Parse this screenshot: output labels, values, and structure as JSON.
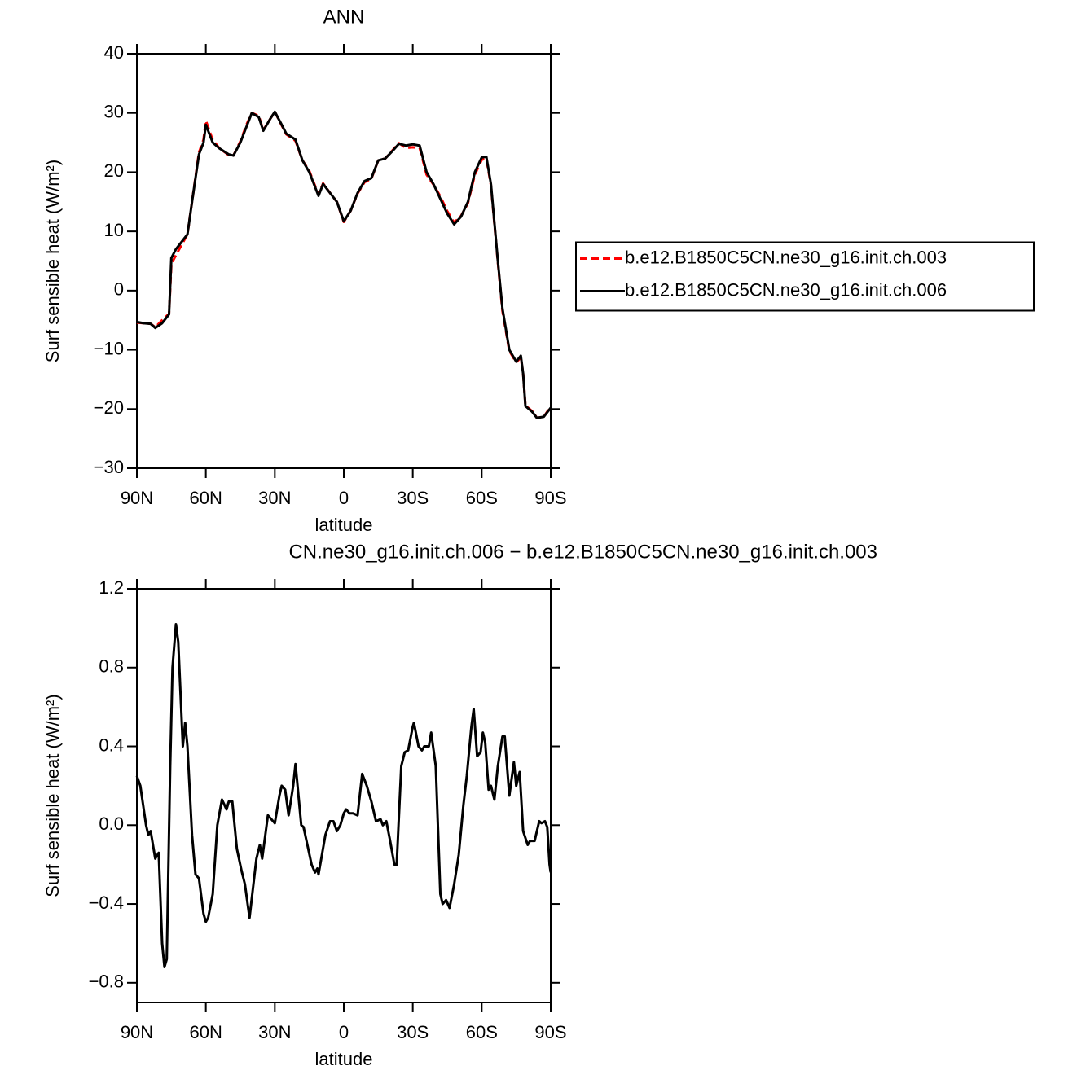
{
  "chart_data": [
    {
      "type": "line",
      "title": "ANN",
      "xlabel": "latitude",
      "ylabel": "Surf sensible heat (W/m²)",
      "x": [
        90,
        87,
        84,
        82,
        79,
        76,
        75,
        73,
        70,
        68,
        66,
        63,
        61,
        60,
        57,
        54,
        50,
        48,
        45,
        42,
        40,
        37,
        35,
        32,
        30,
        27,
        25,
        21,
        18,
        15,
        11,
        9,
        6,
        3,
        0,
        -3,
        -6,
        -9,
        -12,
        -15,
        -18,
        -21,
        -24,
        -27,
        -30,
        -33,
        -36,
        -39,
        -42,
        -45,
        -48,
        -51,
        -54,
        -57,
        -60,
        -62,
        -64,
        -67,
        -69,
        -72,
        -75,
        -77,
        -78,
        -79,
        -82,
        -84,
        -87,
        -90
      ],
      "series": [
        {
          "name": "b.e12.B1850C5CN.ne30_g16.init.ch.003",
          "color": "#ff0000",
          "linestyle": "dashed",
          "values": [
            -5.4,
            -5.5,
            -5.6,
            -6.2,
            -5.0,
            -3.9,
            4.5,
            6,
            8.1,
            9.5,
            15,
            23.3,
            25.5,
            28.7,
            25.4,
            24,
            22.9,
            22.8,
            25.2,
            28.3,
            30,
            29.5,
            27.1,
            29,
            30.2,
            27.9,
            26.4,
            25.3,
            22,
            20.2,
            16.2,
            18.1,
            16.5,
            15,
            11.6,
            13.5,
            16.4,
            18.3,
            18.9,
            22,
            22.3,
            23.6,
            24.9,
            24.1,
            24.2,
            24.1,
            19.6,
            17.9,
            15.9,
            13.4,
            11.5,
            12.6,
            14.8,
            19.6,
            22.1,
            22.3,
            17.8,
            4.8,
            -3.4,
            -10.2,
            -12.1,
            -11.3,
            -14,
            -19.4,
            -20.4,
            -21.5,
            -21.3,
            -19.6
          ]
        },
        {
          "name": "b.e12.B1850C5CN.ne30_g16.init.ch.006",
          "color": "#000000",
          "linestyle": "solid",
          "values": [
            -5.3,
            -5.5,
            -5.6,
            -6.3,
            -5.5,
            -4,
            5.5,
            7,
            8.5,
            9.5,
            15,
            23,
            25,
            28,
            25,
            24,
            23,
            22.8,
            25,
            28,
            30,
            29.3,
            27,
            29,
            30.2,
            28,
            26.5,
            25.5,
            22,
            20,
            16,
            18,
            16.5,
            15,
            11.7,
            13.5,
            16.5,
            18.5,
            19,
            22,
            22.3,
            23.5,
            24.8,
            24.5,
            24.7,
            24.5,
            20,
            18,
            15.5,
            13,
            11.2,
            12.5,
            15,
            20,
            22.5,
            22.6,
            18,
            5,
            -3,
            -10,
            -12,
            -11,
            -14,
            -19.5,
            -20.5,
            -21.5,
            -21.3,
            -19.8
          ]
        }
      ],
      "xlim": [
        90,
        -90
      ],
      "xticks": [
        {
          "value": 90,
          "label": "90N"
        },
        {
          "value": 60,
          "label": "60N"
        },
        {
          "value": 30,
          "label": "30N"
        },
        0,
        {
          "value": -30,
          "label": "30S"
        },
        {
          "value": -60,
          "label": "60S"
        },
        {
          "value": -90,
          "label": "90S"
        }
      ],
      "ylim": [
        -30,
        40
      ],
      "yticks": [
        {
          "value": -30,
          "label": "−30"
        },
        {
          "value": -20,
          "label": "−20"
        },
        {
          "value": -10,
          "label": "−10"
        },
        0,
        10,
        20,
        30,
        40
      ],
      "legend": "right"
    },
    {
      "type": "line",
      "title": "CN.ne30_g16.init.ch.006 − b.e12.B1850C5CN.ne30_g16.init.ch.003",
      "xlabel": "latitude",
      "ylabel": "Surf sensible heat (W/m²)",
      "x": [
        90,
        88.5,
        86,
        85,
        84,
        82,
        80.5,
        79,
        78,
        77,
        75.5,
        74.5,
        73,
        72,
        70,
        69,
        68,
        66,
        64.5,
        63,
        61,
        60,
        59,
        57,
        55,
        53,
        51,
        50,
        48.5,
        46.5,
        44.5,
        43,
        41,
        38,
        36.5,
        35.5,
        33,
        30,
        28,
        27,
        25.5,
        24,
        22,
        21,
        18.5,
        17.5,
        14,
        12.5,
        11.5,
        11,
        8,
        6,
        4.5,
        3,
        1.5,
        0,
        -1,
        -2.5,
        -4,
        -6,
        -8,
        -10,
        -12,
        -14,
        -16,
        -17,
        -18.5,
        -20,
        -22,
        -23,
        -25,
        -26.5,
        -28,
        -30,
        -30.5,
        -32.5,
        -34,
        -35,
        -37,
        -38,
        -40,
        -42,
        -43,
        -44.5,
        -46,
        -48,
        -50,
        -52,
        -53.5,
        -55.5,
        -56.5,
        -58,
        -59.5,
        -60.5,
        -61.5,
        -63,
        -64,
        -65.5,
        -67,
        -69,
        -70,
        -72,
        -74,
        -75,
        -76.5,
        -78,
        -80,
        -81,
        -83,
        -85,
        -86,
        -87.5,
        -88.5,
        -89.5,
        -90
      ],
      "values": [
        0.25,
        0.2,
        0.0,
        -0.05,
        -0.03,
        -0.17,
        -0.14,
        -0.6,
        -0.72,
        -0.68,
        0.3,
        0.8,
        1.02,
        0.93,
        0.4,
        0.52,
        0.4,
        -0.05,
        -0.25,
        -0.27,
        -0.45,
        -0.49,
        -0.47,
        -0.35,
        0.0,
        0.13,
        0.08,
        0.12,
        0.12,
        -0.12,
        -0.23,
        -0.3,
        -0.47,
        -0.17,
        -0.1,
        -0.17,
        0.05,
        0.01,
        0.15,
        0.2,
        0.18,
        0.05,
        0.2,
        0.31,
        0.0,
        -0.01,
        -0.2,
        -0.24,
        -0.22,
        -0.25,
        -0.05,
        0.02,
        0.02,
        -0.03,
        0.0,
        0.06,
        0.08,
        0.06,
        0.06,
        0.05,
        0.26,
        0.2,
        0.12,
        0.02,
        0.03,
        0.0,
        0.02,
        -0.07,
        -0.2,
        -0.2,
        0.3,
        0.37,
        0.38,
        0.5,
        0.52,
        0.4,
        0.38,
        0.4,
        0.4,
        0.47,
        0.3,
        -0.35,
        -0.4,
        -0.38,
        -0.42,
        -0.3,
        -0.15,
        0.1,
        0.25,
        0.5,
        0.59,
        0.35,
        0.37,
        0.47,
        0.42,
        0.18,
        0.2,
        0.13,
        0.3,
        0.45,
        0.45,
        0.15,
        0.32,
        0.2,
        0.27,
        -0.03,
        -0.1,
        -0.08,
        -0.08,
        0.02,
        0.01,
        0.02,
        -0.01,
        -0.2,
        -0.24
      ],
      "color": "#000000",
      "xlim": [
        90,
        -90
      ],
      "xticks": [
        {
          "value": 90,
          "label": "90N"
        },
        {
          "value": 60,
          "label": "60N"
        },
        {
          "value": 30,
          "label": "30N"
        },
        0,
        {
          "value": -30,
          "label": "30S"
        },
        {
          "value": -60,
          "label": "60S"
        },
        {
          "value": -90,
          "label": "90S"
        }
      ],
      "ylim": [
        -0.9,
        1.2
      ],
      "yticks": [
        {
          "value": -0.8,
          "label": "−0.8"
        },
        {
          "value": -0.4,
          "label": "−0.4"
        },
        {
          "value": 0,
          "label": "0.0"
        },
        0.4,
        0.8,
        1.2
      ]
    }
  ]
}
